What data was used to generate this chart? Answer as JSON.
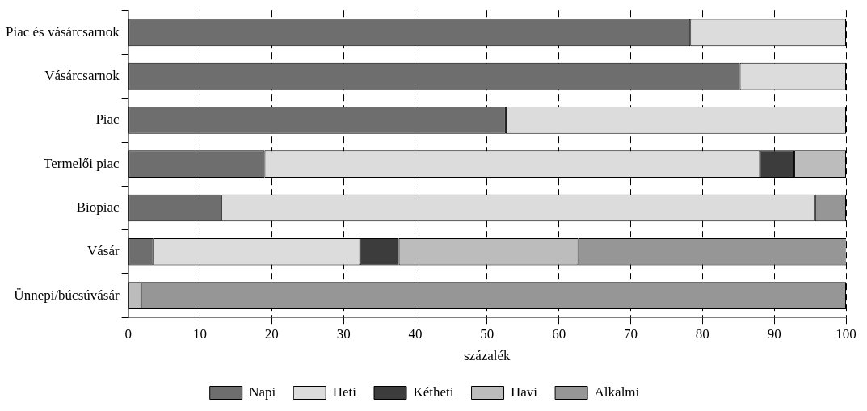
{
  "chart_data": {
    "type": "bar",
    "orientation": "horizontal",
    "stacked": true,
    "xlabel": "százalék",
    "categories": [
      "Piac és vásárcsarnok",
      "Vásárcsarnok",
      "Piac",
      "Termelői piac",
      "Biopiac",
      "Vásár",
      "Ünnepi/búcsúvásár"
    ],
    "series": [
      {
        "name": "Napi",
        "color": "#6e6e6e",
        "values": [
          78.3,
          85.2,
          52.6,
          19,
          13,
          3.5,
          0
        ]
      },
      {
        "name": "Heti",
        "color": "#dcdcdc",
        "values": [
          21.7,
          14.8,
          47.4,
          69,
          82.7,
          28.8,
          0
        ]
      },
      {
        "name": "Kétheti",
        "color": "#3c3c3c",
        "values": [
          0,
          0,
          0,
          4.8,
          0,
          5.4,
          0
        ]
      },
      {
        "name": "Havi",
        "color": "#bcbcbc",
        "values": [
          0,
          0,
          0,
          7.2,
          0,
          25,
          1.8
        ]
      },
      {
        "name": "Alkalmi",
        "color": "#969696",
        "values": [
          0,
          0,
          0,
          0,
          4.3,
          37.4,
          98.2
        ]
      }
    ],
    "xlim": [
      0,
      100
    ],
    "xticks": [
      0,
      10,
      20,
      30,
      40,
      50,
      60,
      70,
      80,
      90,
      100
    ],
    "grid": "x",
    "legend": "bottom"
  }
}
